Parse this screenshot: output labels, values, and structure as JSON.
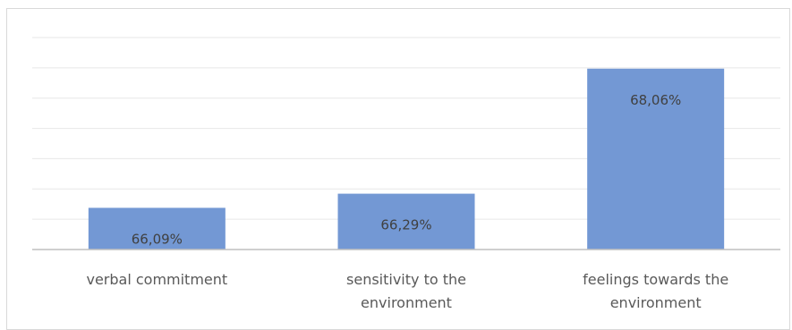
{
  "chart_data": {
    "type": "bar",
    "categories": [
      [
        "verbal commitment"
      ],
      [
        "sensitivity to the",
        "environment"
      ],
      [
        "feelings towards the",
        "environment"
      ]
    ],
    "values": [
      66.09,
      66.29,
      68.06
    ],
    "data_labels": [
      "66,09%",
      "66,29%",
      "68,06%"
    ],
    "title": "",
    "xlabel": "",
    "ylabel": "",
    "ylim": [
      65.5,
      68.5
    ],
    "grid": true,
    "legend": "none",
    "colors": {
      "bar": "#7398d4",
      "grid": "#e7e7e7",
      "axis": "#bfbfbf",
      "label": "#595959",
      "data_label": "#404040"
    }
  }
}
